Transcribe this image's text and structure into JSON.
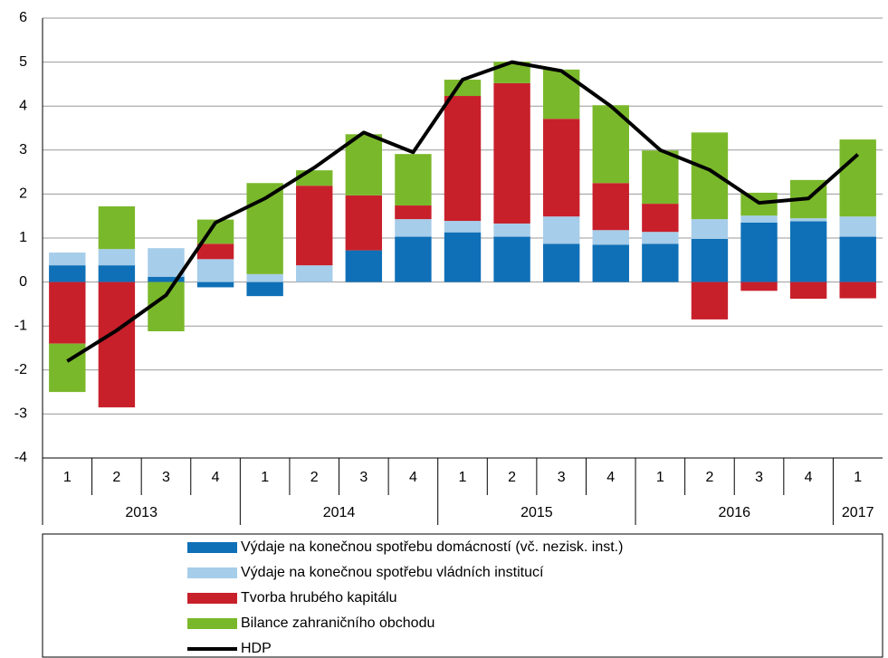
{
  "chart_data": {
    "type": "bar",
    "category_groups": [
      {
        "label": "2013",
        "categories": [
          "1",
          "2",
          "3",
          "4"
        ]
      },
      {
        "label": "2014",
        "categories": [
          "1",
          "2",
          "3",
          "4"
        ]
      },
      {
        "label": "2015",
        "categories": [
          "1",
          "2",
          "3",
          "4"
        ]
      },
      {
        "label": "2016",
        "categories": [
          "1",
          "2",
          "3",
          "4"
        ]
      },
      {
        "label": "2017",
        "categories": [
          "1"
        ]
      }
    ],
    "series": [
      {
        "name": "Výdaje na konečnou spotřebu domácností (vč. nezisk. inst.)",
        "color": "#0f70b7",
        "values": [
          0.38,
          0.38,
          0.12,
          -0.12,
          -0.32,
          0,
          0.72,
          1.03,
          1.13,
          1.03,
          0.87,
          0.85,
          0.87,
          0.98,
          1.35,
          1.38,
          1.03
        ]
      },
      {
        "name": "Výdaje na konečnou spotřebu vládních institucí",
        "color": "#a6cdea",
        "values": [
          0.29,
          0.37,
          0.65,
          0.52,
          0.18,
          0.38,
          0,
          0.4,
          0.26,
          0.3,
          0.62,
          0.33,
          0.27,
          0.45,
          0.16,
          0.07,
          0.46
        ]
      },
      {
        "name": "Tvorba hrubého kapitálu",
        "color": "#c8202b",
        "values": [
          -1.4,
          -2.85,
          0,
          0.35,
          0,
          1.81,
          1.25,
          0.31,
          2.84,
          3.19,
          2.22,
          1.07,
          0.64,
          -0.85,
          -0.2,
          -0.38,
          -0.37
        ]
      },
      {
        "name": "Bilance zahraničního obchodu",
        "color": "#7ab82b",
        "values": [
          -1.1,
          0.97,
          -1.12,
          0.55,
          2.07,
          0.35,
          1.39,
          1.17,
          0.37,
          0.49,
          1.12,
          1.77,
          1.21,
          1.97,
          0.52,
          0.87,
          1.75
        ]
      },
      {
        "name": "HDP",
        "color": "#000000",
        "type": "line",
        "values": [
          -1.8,
          -1.1,
          -0.3,
          1.35,
          1.9,
          2.6,
          3.4,
          2.95,
          4.6,
          5.0,
          4.8,
          4.0,
          3.0,
          2.55,
          1.8,
          1.9,
          2.9
        ]
      }
    ],
    "ylim": [
      -4,
      6
    ],
    "yticks": [
      -4,
      -3,
      -2,
      -1,
      0,
      1,
      2,
      3,
      4,
      5,
      6
    ],
    "grid": true
  }
}
